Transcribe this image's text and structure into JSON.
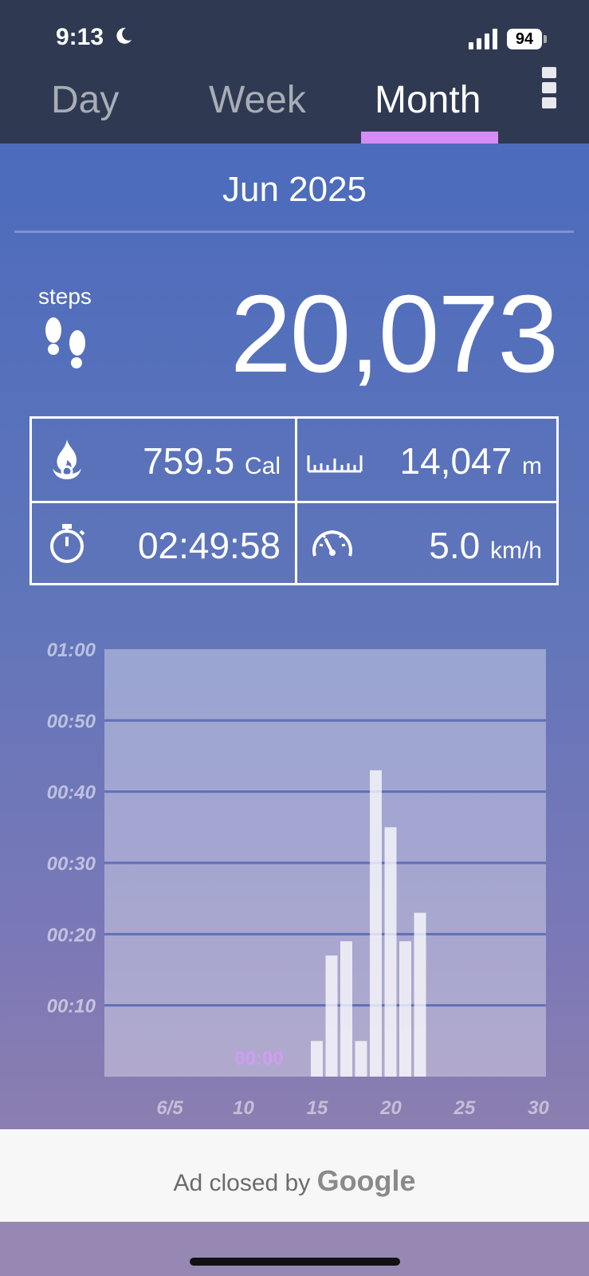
{
  "status_bar": {
    "time": "9:13",
    "battery": "94"
  },
  "tabs": [
    {
      "label": "Day",
      "active": false
    },
    {
      "label": "Week",
      "active": false
    },
    {
      "label": "Month",
      "active": true
    }
  ],
  "header": {
    "period": "Jun 2025"
  },
  "steps": {
    "label": "steps",
    "value": "20,073"
  },
  "stats": {
    "calories": {
      "value": "759.5",
      "unit": "Cal",
      "icon": "flame-icon"
    },
    "distance": {
      "value": "14,047",
      "unit": "m",
      "icon": "ruler-icon"
    },
    "duration": {
      "value": "02:49:58",
      "icon": "stopwatch-icon"
    },
    "speed": {
      "value": "5.0",
      "unit": "km/h",
      "icon": "speedometer-icon"
    }
  },
  "chart_data": {
    "type": "bar",
    "ylabel": "",
    "xlabel": "",
    "ylim": [
      0,
      60
    ],
    "y_ticks": [
      "00:10",
      "00:20",
      "00:30",
      "00:40",
      "00:50",
      "01:00"
    ],
    "x_ticks": [
      "6/5",
      "10",
      "15",
      "20",
      "25",
      "30"
    ],
    "x_tick_values": [
      5,
      10,
      15,
      20,
      25,
      30
    ],
    "zero_label": "00:00",
    "days": [
      15,
      16,
      17,
      18,
      19,
      20,
      21,
      22
    ],
    "values": [
      5,
      17,
      19,
      5,
      43,
      35,
      19,
      23
    ],
    "grid": true
  },
  "ad": {
    "text": "Ad closed by",
    "brand": "Google"
  },
  "colors": {
    "topbar": "#2f3a52",
    "accent": "#d58cf4",
    "panel": "#4c6bbc"
  }
}
